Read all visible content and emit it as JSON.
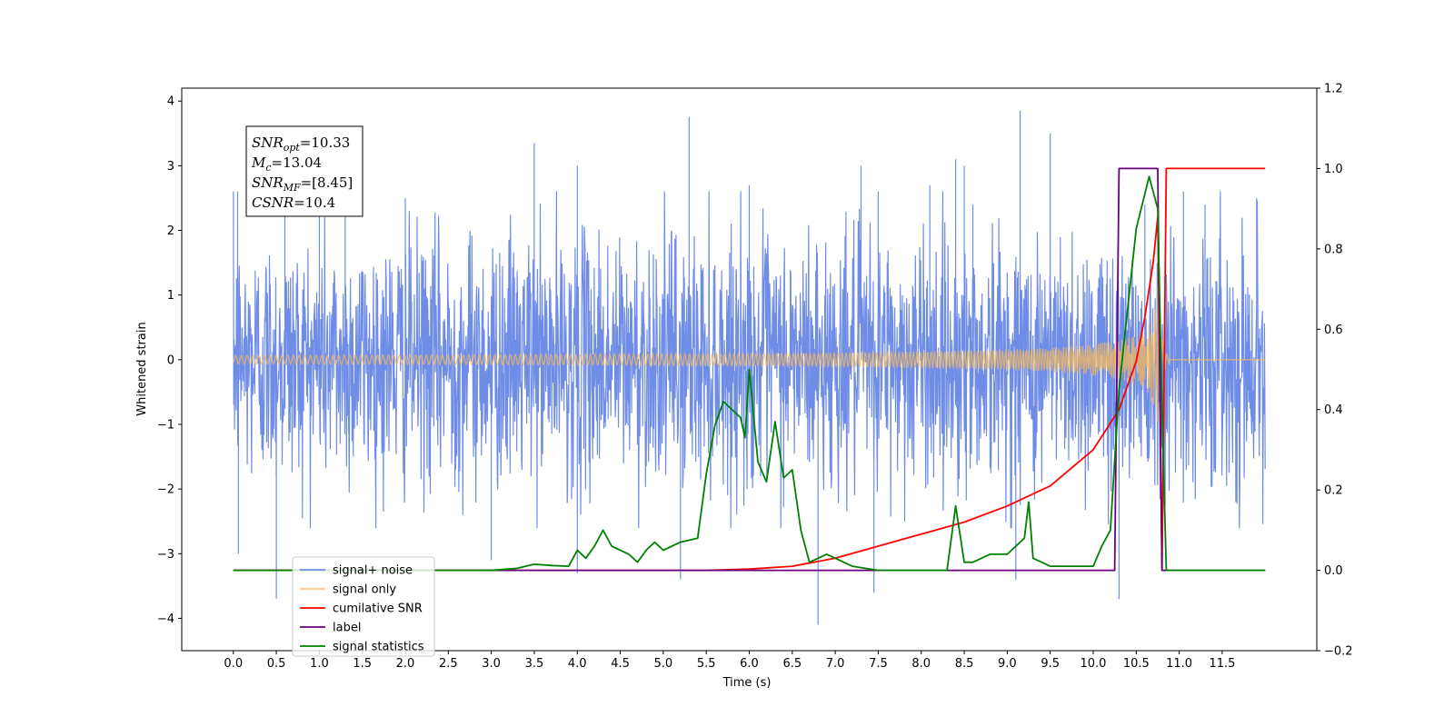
{
  "chart_data": {
    "type": "line",
    "xlabel": "Time (s)",
    "ylabel": "Whitened strain",
    "x_ticks": [
      "0.0",
      "0.5",
      "1.0",
      "1.5",
      "2.0",
      "2.5",
      "3.0",
      "3.5",
      "4.0",
      "4.5",
      "5.0",
      "5.5",
      "6.0",
      "6.5",
      "7.0",
      "7.5",
      "8.0",
      "8.5",
      "9.0",
      "9.5",
      "10.0",
      "10.5",
      "11.0",
      "11.5"
    ],
    "y_ticks_left": [
      "−4",
      "−3",
      "−2",
      "−1",
      "0",
      "1",
      "2",
      "3",
      "4"
    ],
    "y_ticks_right": [
      "−0.2",
      "0.0",
      "0.2",
      "0.4",
      "0.6",
      "0.8",
      "1.0",
      "1.2"
    ],
    "xlim": [
      -0.6,
      12.6
    ],
    "ylim_left": [
      -4.5,
      4.2
    ],
    "ylim_right": [
      -0.2,
      1.2
    ],
    "annotation": {
      "snr_opt": "=10.33",
      "mc": "=13.04",
      "snr_mf": "=[8.45]",
      "csnr": "=10.4"
    },
    "legend": {
      "placement": "lower-left",
      "entries": [
        "signal+ noise",
        "signal only",
        "cumilative SNR",
        "label",
        "signal statistics"
      ]
    },
    "colors": {
      "noise": "#6f8de6",
      "signal": "#f5b95c",
      "cumulative_snr": "#ff0000",
      "label": "#6a0080",
      "statistics": "#008000"
    },
    "series": [
      {
        "name": "signal+ noise",
        "axis": "left",
        "x_range": [
          0.0,
          12.0
        ],
        "envelope_typical": 1.4,
        "peaks": [
          [
            0.05,
            2.6
          ],
          [
            0.06,
            -3.0
          ],
          [
            0.5,
            -3.7
          ],
          [
            0.6,
            2.7
          ],
          [
            1.0,
            2.9
          ],
          [
            1.3,
            2.6
          ],
          [
            2.0,
            2.5
          ],
          [
            3.5,
            3.35
          ],
          [
            3.0,
            -3.1
          ],
          [
            4.0,
            3.0
          ],
          [
            4.0,
            -3.3
          ],
          [
            5.3,
            3.75
          ],
          [
            5.2,
            -3.4
          ],
          [
            6.0,
            2.7
          ],
          [
            6.8,
            -4.1
          ],
          [
            7.3,
            3.0
          ],
          [
            7.5,
            2.6
          ],
          [
            7.45,
            -3.6
          ],
          [
            8.1,
            2.7
          ],
          [
            8.4,
            3.1
          ],
          [
            8.5,
            3.0
          ],
          [
            8.6,
            2.4
          ],
          [
            9.15,
            3.85
          ],
          [
            9.1,
            -3.4
          ],
          [
            9.5,
            3.5
          ],
          [
            10.3,
            -3.7
          ],
          [
            10.6,
            2.4
          ],
          [
            11.05,
            2.6
          ],
          [
            11.3,
            2.4
          ],
          [
            11.9,
            2.5
          ]
        ]
      },
      {
        "name": "signal only",
        "axis": "left",
        "chirp_merger_time": 10.75,
        "peak_amplitude": 1.2
      },
      {
        "name": "cumilative SNR",
        "axis": "right",
        "x": [
          0.0,
          5.5,
          6.0,
          6.5,
          7.0,
          7.5,
          8.0,
          8.5,
          9.0,
          9.5,
          10.0,
          10.3,
          10.5,
          10.6,
          10.7,
          10.75,
          10.8,
          10.85,
          12.0
        ],
        "y": [
          0.0,
          0.0,
          0.003,
          0.01,
          0.03,
          0.06,
          0.09,
          0.12,
          0.16,
          0.21,
          0.3,
          0.4,
          0.52,
          0.63,
          0.77,
          0.88,
          0.0,
          1.0,
          1.0
        ]
      },
      {
        "name": "label",
        "axis": "right",
        "x": [
          0.0,
          10.25,
          10.3,
          10.75,
          10.8,
          12.0
        ],
        "y": [
          0.0,
          0.0,
          1.0,
          1.0,
          0.0,
          0.0
        ]
      },
      {
        "name": "signal statistics",
        "axis": "right",
        "x": [
          0.0,
          3.0,
          3.3,
          3.5,
          3.7,
          3.9,
          4.0,
          4.1,
          4.2,
          4.3,
          4.4,
          4.6,
          4.7,
          4.8,
          4.9,
          5.0,
          5.2,
          5.4,
          5.5,
          5.6,
          5.7,
          5.9,
          5.95,
          6.0,
          6.1,
          6.2,
          6.3,
          6.4,
          6.5,
          6.6,
          6.7,
          6.8,
          6.9,
          7.0,
          7.2,
          7.5,
          8.0,
          8.3,
          8.4,
          8.5,
          8.6,
          8.8,
          9.0,
          9.2,
          9.25,
          9.3,
          9.5,
          10.0,
          10.1,
          10.2,
          10.3,
          10.5,
          10.65,
          10.75,
          10.8,
          10.85,
          12.0
        ],
        "y": [
          0.0,
          0.0,
          0.005,
          0.015,
          0.012,
          0.01,
          0.05,
          0.03,
          0.06,
          0.1,
          0.06,
          0.04,
          0.02,
          0.05,
          0.07,
          0.05,
          0.07,
          0.08,
          0.24,
          0.36,
          0.42,
          0.38,
          0.33,
          0.5,
          0.27,
          0.22,
          0.37,
          0.23,
          0.25,
          0.1,
          0.02,
          0.03,
          0.04,
          0.03,
          0.01,
          0.0,
          0.0,
          0.0,
          0.16,
          0.02,
          0.02,
          0.04,
          0.04,
          0.08,
          0.17,
          0.03,
          0.01,
          0.01,
          0.06,
          0.1,
          0.45,
          0.85,
          0.98,
          0.9,
          0.4,
          0.0,
          0.0
        ]
      }
    ]
  }
}
